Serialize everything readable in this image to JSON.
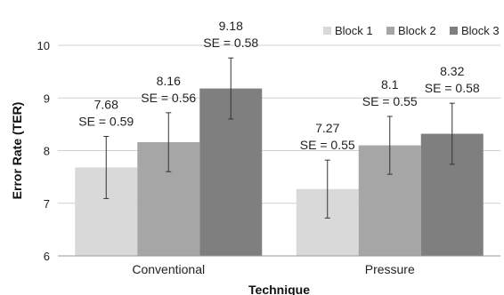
{
  "chart_data": {
    "type": "bar",
    "title": "",
    "xlabel": "Technique",
    "ylabel": "Error Rate (TER)",
    "categories": [
      "Conventional",
      "Pressure"
    ],
    "ylim": [
      6,
      10
    ],
    "yticks": [
      6,
      7,
      8,
      9,
      10
    ],
    "grid": true,
    "legend_position": "top-right",
    "series": [
      {
        "name": "Block 1",
        "color": "#d9d9d9",
        "values": [
          7.68,
          7.27
        ],
        "se": [
          0.59,
          0.55
        ],
        "value_labels": [
          "7.68",
          "7.27"
        ],
        "se_labels": [
          "SE = 0.59",
          "SE = 0.55"
        ]
      },
      {
        "name": "Block 2",
        "color": "#a6a6a6",
        "values": [
          8.16,
          8.1
        ],
        "se": [
          0.56,
          0.55
        ],
        "value_labels": [
          "8.16",
          "8.1"
        ],
        "se_labels": [
          "SE = 0.56",
          "SE = 0.55"
        ]
      },
      {
        "name": "Block 3",
        "color": "#7f7f7f",
        "values": [
          9.18,
          8.32
        ],
        "se": [
          0.58,
          0.58
        ],
        "value_labels": [
          "9.18",
          "8.32"
        ],
        "se_labels": [
          "SE = 0.58",
          "SE = 0.58"
        ]
      }
    ]
  }
}
